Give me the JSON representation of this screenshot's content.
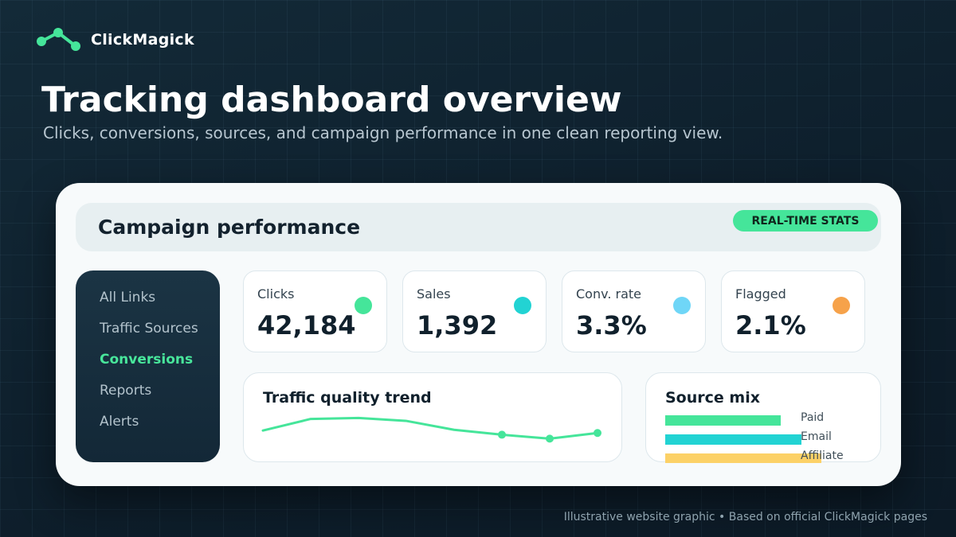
{
  "brand": {
    "name": "ClickMagick",
    "icon": "network-nodes-icon",
    "accent": "#45e59a"
  },
  "hero": {
    "title": "Tracking dashboard overview",
    "subtitle": "Clicks, conversions, sources, and campaign performance in one clean reporting view."
  },
  "card": {
    "title": "Campaign performance",
    "badge": "REAL-TIME STATS"
  },
  "sidebar": {
    "items": [
      {
        "label": "All Links",
        "active": false
      },
      {
        "label": "Traffic Sources",
        "active": false
      },
      {
        "label": "Conversions",
        "active": true
      },
      {
        "label": "Reports",
        "active": false
      },
      {
        "label": "Alerts",
        "active": false
      }
    ]
  },
  "stats": [
    {
      "label": "Clicks",
      "value": "42,184",
      "color": "#45e59a"
    },
    {
      "label": "Sales",
      "value": "1,392",
      "color": "#22d3d3"
    },
    {
      "label": "Conv. rate",
      "value": "3.3%",
      "color": "#6fd6f7"
    },
    {
      "label": "Flagged",
      "value": "2.1%",
      "color": "#f6a24a"
    }
  ],
  "trend": {
    "title": "Traffic quality trend",
    "color": "#45e59a",
    "points": [
      0.35,
      0.82,
      0.86,
      0.74,
      0.38,
      0.18,
      0.02,
      0.25
    ],
    "markers": [
      5,
      6,
      7
    ]
  },
  "mix": {
    "title": "Source mix",
    "items": [
      {
        "label": "Paid",
        "share": 0.74,
        "color": "#45e59a"
      },
      {
        "label": "Email",
        "share": 0.87,
        "color": "#22d3d3"
      },
      {
        "label": "Affiliate",
        "share": 1.0,
        "color": "#fcd167"
      }
    ]
  },
  "footer": "Illustrative website graphic • Based on official ClickMagick pages"
}
